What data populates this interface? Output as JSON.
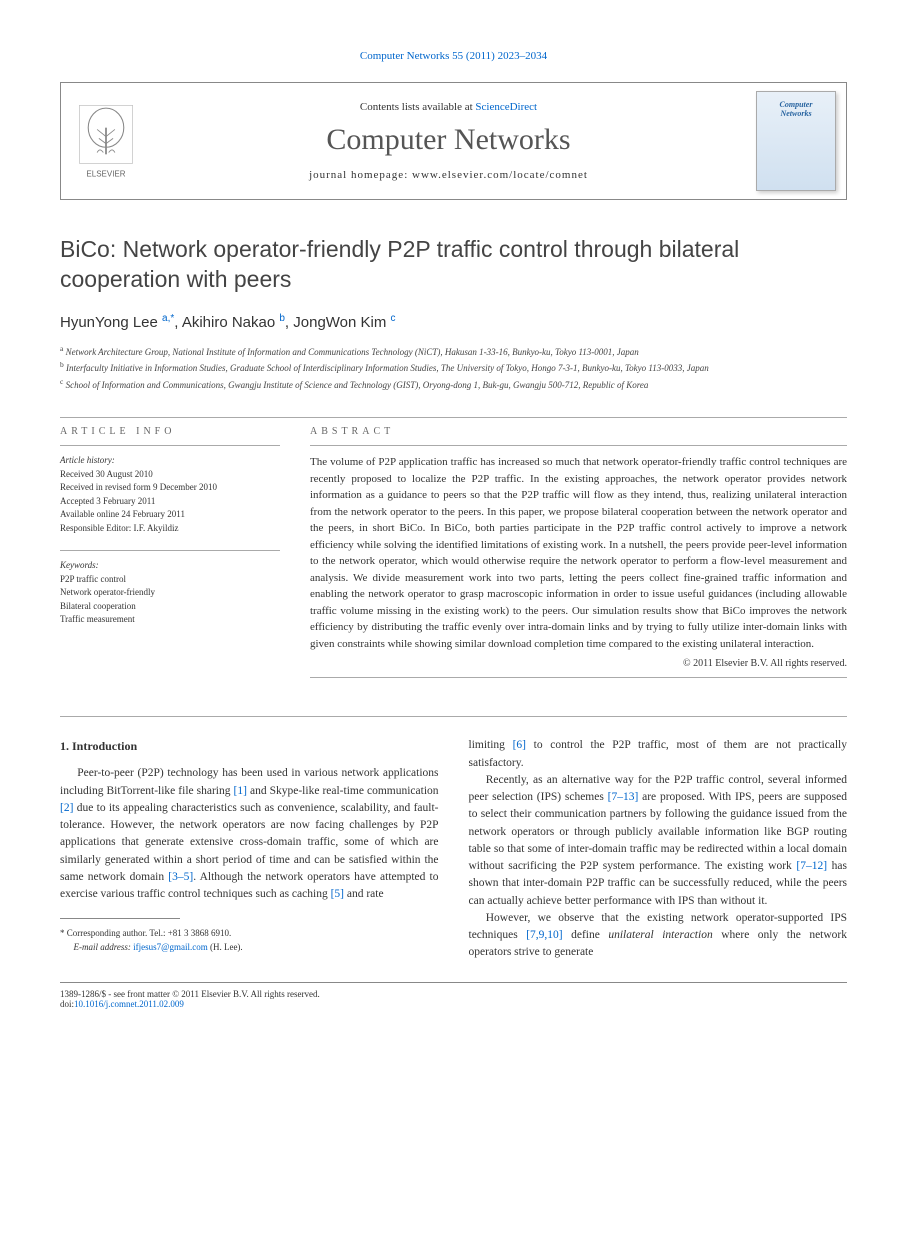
{
  "journal_header": "Computer Networks 55 (2011) 2023–2034",
  "header": {
    "contents_prefix": "Contents lists available at ",
    "contents_link": "ScienceDirect",
    "journal_name": "Computer Networks",
    "homepage_prefix": "journal homepage: ",
    "homepage_url": "www.elsevier.com/locate/comnet",
    "publisher_name": "ELSEVIER",
    "cover_text_1": "Computer",
    "cover_text_2": "Networks"
  },
  "title": "BiCo: Network operator-friendly P2P traffic control through bilateral cooperation with peers",
  "authors": [
    {
      "name": "HyunYong Lee",
      "sup": "a,",
      "mark": "*"
    },
    {
      "name": "Akihiro Nakao",
      "sup": "b",
      "mark": ""
    },
    {
      "name": "JongWon Kim",
      "sup": "c",
      "mark": ""
    }
  ],
  "affiliations": [
    {
      "sup": "a",
      "text": "Network Architecture Group, National Institute of Information and Communications Technology (NiCT), Hakusan 1-33-16, Bunkyo-ku, Tokyo 113-0001, Japan"
    },
    {
      "sup": "b",
      "text": "Interfaculty Initiative in Information Studies, Graduate School of Interdisciplinary Information Studies, The University of Tokyo, Hongo 7-3-1, Bunkyo-ku, Tokyo 113-0033, Japan"
    },
    {
      "sup": "c",
      "text": "School of Information and Communications, Gwangju Institute of Science and Technology (GIST), Oryong-dong 1, Buk-gu, Gwangju 500-712, Republic of Korea"
    }
  ],
  "article_info": {
    "heading": "ARTICLE INFO",
    "history_label": "Article history:",
    "history": [
      "Received 30 August 2010",
      "Received in revised form 9 December 2010",
      "Accepted 3 February 2011",
      "Available online 24 February 2011",
      "Responsible Editor: I.F. Akyildiz"
    ],
    "keywords_label": "Keywords:",
    "keywords": [
      "P2P traffic control",
      "Network operator-friendly",
      "Bilateral cooperation",
      "Traffic measurement"
    ]
  },
  "abstract": {
    "heading": "ABSTRACT",
    "text": "The volume of P2P application traffic has increased so much that network operator-friendly traffic control techniques are recently proposed to localize the P2P traffic. In the existing approaches, the network operator provides network information as a guidance to peers so that the P2P traffic will flow as they intend, thus, realizing unilateral interaction from the network operator to the peers. In this paper, we propose bilateral cooperation between the network operator and the peers, in short BiCo. In BiCo, both parties participate in the P2P traffic control actively to improve a network efficiency while solving the identified limitations of existing work. In a nutshell, the peers provide peer-level information to the network operator, which would otherwise require the network operator to perform a flow-level measurement and analysis. We divide measurement work into two parts, letting the peers collect fine-grained traffic information and enabling the network operator to grasp macroscopic information in order to issue useful guidances (including allowable traffic volume missing in the existing work) to the peers. Our simulation results show that BiCo improves the network efficiency by distributing the traffic evenly over intra-domain links and by trying to fully utilize inter-domain links with given constraints while showing similar download completion time compared to the existing unilateral interaction.",
    "copyright": "© 2011 Elsevier B.V. All rights reserved."
  },
  "body": {
    "section_heading": "1. Introduction",
    "col1_p1_pre": "Peer-to-peer (P2P) technology has been used in various network applications including BitTorrent-like file sharing ",
    "col1_p1_c1": "[1]",
    "col1_p1_mid1": " and Skype-like real-time communication ",
    "col1_p1_c2": "[2]",
    "col1_p1_mid2": " due to its appealing characteristics such as convenience, scalability, and fault-tolerance. However, the network operators are now facing challenges by P2P applications that generate extensive cross-domain traffic, some of which are similarly generated within a short period of time and can be satisfied within the same network domain ",
    "col1_p1_c3": "[3–5]",
    "col1_p1_mid3": ". Although the network operators have attempted to exercise various traffic control techniques such as caching ",
    "col1_p1_c4": "[5]",
    "col1_p1_post": " and rate",
    "col2_p1_pre": "limiting ",
    "col2_p1_c1": "[6]",
    "col2_p1_post": " to control the P2P traffic, most of them are not practically satisfactory.",
    "col2_p2_pre": "Recently, as an alternative way for the P2P traffic control, several informed peer selection (IPS) schemes ",
    "col2_p2_c1": "[7–13]",
    "col2_p2_mid": " are proposed. With IPS, peers are supposed to select their communication partners by following the guidance issued from the network operators or through publicly available information like BGP routing table so that some of inter-domain traffic may be redirected within a local domain without sacrificing the P2P system performance. The existing work ",
    "col2_p2_c2": "[7–12]",
    "col2_p2_post": " has shown that inter-domain P2P traffic can be successfully reduced, while the peers can actually achieve better performance with IPS than without it.",
    "col2_p3_pre": "However, we observe that the existing network operator-supported IPS techniques ",
    "col2_p3_c1": "[7,9,10]",
    "col2_p3_mid": " define ",
    "col2_p3_em": "unilateral interaction",
    "col2_p3_post": " where only the network operators strive to generate"
  },
  "corresponding": {
    "label": "* Corresponding author. Tel.: +81 3 3868 6910.",
    "email_label": "E-mail address: ",
    "email": "ifjesus7@gmail.com",
    "email_suffix": " (H. Lee)."
  },
  "footer": {
    "issn_line": "1389-1286/$ - see front matter © 2011 Elsevier B.V. All rights reserved.",
    "doi_label": "doi:",
    "doi": "10.1016/j.comnet.2011.02.009"
  },
  "colors": {
    "link": "#0066cc",
    "text": "#333333",
    "border": "#888888"
  }
}
